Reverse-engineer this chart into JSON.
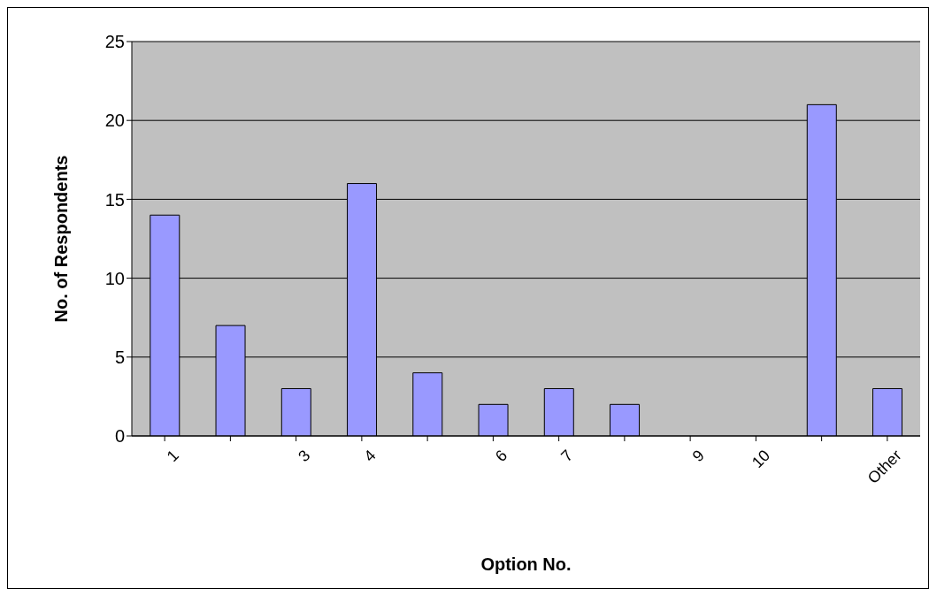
{
  "chart_data": {
    "type": "bar",
    "xlabel": "Option No.",
    "ylabel": "No. of Respondents",
    "categories": [
      "1",
      null,
      "3",
      "4",
      null,
      "6",
      "7",
      null,
      "9",
      "10",
      null,
      "Other"
    ],
    "values": [
      14,
      7,
      3,
      16,
      4,
      2,
      3,
      2,
      0,
      0,
      21,
      3
    ],
    "color": "#9999ff",
    "ylim": [
      0,
      25
    ],
    "yticks": [
      0,
      5,
      10,
      15,
      20,
      25
    ],
    "grid": "y"
  }
}
